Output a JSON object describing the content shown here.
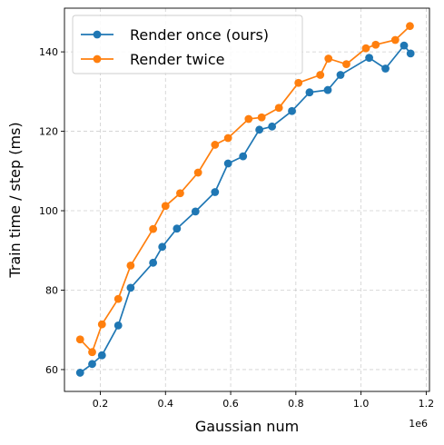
{
  "chart_data": {
    "type": "line",
    "xlabel": "Gaussian num",
    "ylabel": "Train time / step (ms)",
    "x_offset_label": "1e6",
    "xlim": [
      0.09,
      1.21
    ],
    "ylim": [
      54.5,
      151
    ],
    "xticks": [
      0.2,
      0.4,
      0.6,
      0.8,
      1.0,
      1.2
    ],
    "xtick_labels": [
      "0.2",
      "0.4",
      "0.6",
      "0.8",
      "1.0",
      "1.2"
    ],
    "yticks": [
      60,
      80,
      100,
      120,
      140
    ],
    "ytick_labels": [
      "60",
      "80",
      "100",
      "120",
      "140"
    ],
    "grid": true,
    "legend_position": "top-left",
    "series": [
      {
        "name": "Render once (ours)",
        "color": "#1f77b4",
        "marker": "circle",
        "x": [
          0.138,
          0.175,
          0.205,
          0.255,
          0.293,
          0.362,
          0.39,
          0.435,
          0.492,
          0.552,
          0.592,
          0.638,
          0.688,
          0.727,
          0.788,
          0.842,
          0.898,
          0.937,
          1.025,
          1.075,
          1.132,
          1.152
        ],
        "y": [
          59.2,
          61.4,
          63.6,
          71.1,
          80.6,
          86.9,
          90.9,
          95.5,
          99.8,
          104.7,
          111.9,
          113.7,
          120.4,
          121.2,
          125.1,
          129.8,
          130.4,
          134.2,
          138.5,
          135.8,
          141.6,
          139.6
        ]
      },
      {
        "name": "Render twice",
        "color": "#ff7f0e",
        "marker": "circle",
        "x": [
          0.138,
          0.175,
          0.205,
          0.255,
          0.293,
          0.362,
          0.4,
          0.445,
          0.5,
          0.552,
          0.592,
          0.655,
          0.695,
          0.748,
          0.808,
          0.875,
          0.9,
          0.955,
          1.015,
          1.045,
          1.105,
          1.15
        ],
        "y": [
          67.6,
          64.4,
          71.4,
          77.8,
          86.2,
          95.4,
          101.2,
          104.4,
          109.6,
          116.6,
          118.3,
          123.1,
          123.5,
          125.9,
          132.2,
          134.2,
          138.3,
          136.9,
          140.9,
          141.8,
          143.0,
          146.5
        ]
      }
    ]
  }
}
